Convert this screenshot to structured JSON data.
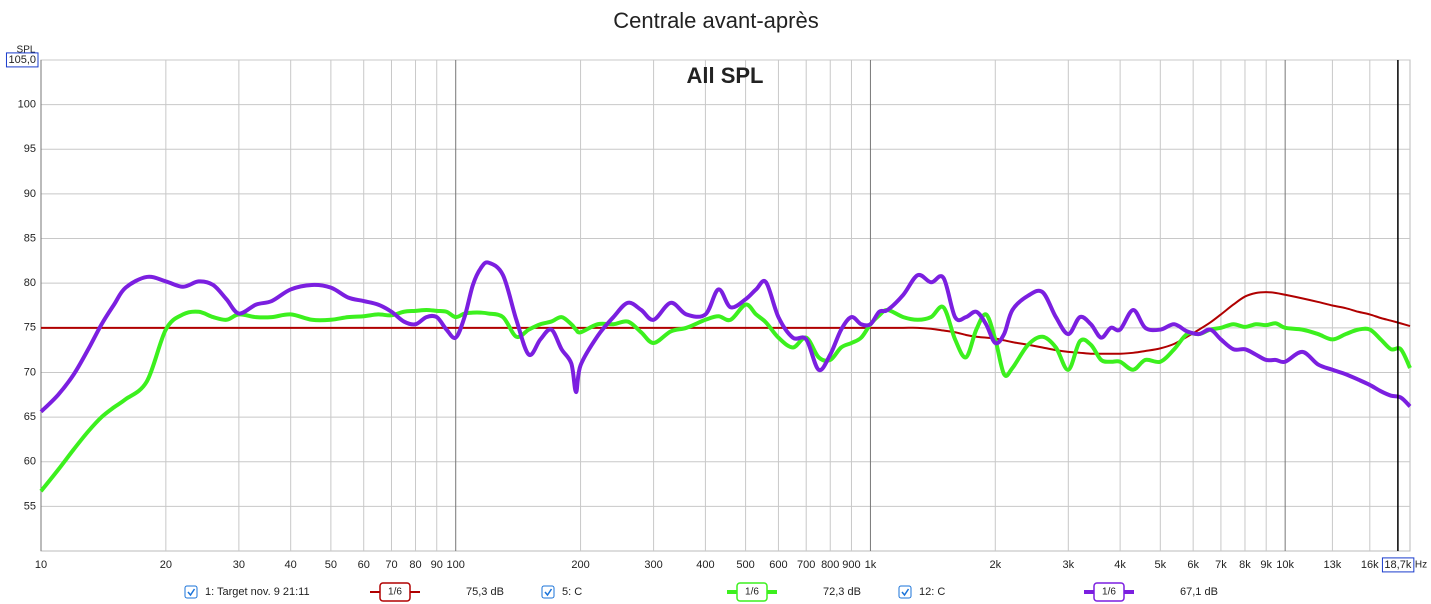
{
  "chart_data": {
    "type": "line",
    "title": "Centrale avant-après",
    "annotation": "All SPL",
    "y_label": "SPL",
    "x_unit": "Hz",
    "log_x": true,
    "grid": true,
    "xlim": [
      10,
      20000
    ],
    "ylim": [
      50,
      105
    ],
    "xticks": [
      10,
      20,
      30,
      40,
      50,
      60,
      70,
      80,
      90,
      100,
      200,
      300,
      400,
      500,
      600,
      700,
      800,
      900,
      {
        "value": 1000,
        "label": "1k"
      },
      {
        "value": 2000,
        "label": "2k"
      },
      {
        "value": 3000,
        "label": "3k"
      },
      {
        "value": 4000,
        "label": "4k"
      },
      {
        "value": 5000,
        "label": "5k"
      },
      {
        "value": 6000,
        "label": "6k"
      },
      {
        "value": 7000,
        "label": "7k"
      },
      {
        "value": 8000,
        "label": "8k"
      },
      {
        "value": 9000,
        "label": "9k"
      },
      {
        "value": 10000,
        "label": "10k"
      },
      {
        "value": 13000,
        "label": "13k"
      },
      {
        "value": 16000,
        "label": "16k"
      }
    ],
    "yticks": [
      55,
      60,
      65,
      70,
      75,
      80,
      85,
      90,
      95,
      100,
      {
        "value": 105,
        "label": "105,0"
      }
    ],
    "cursor": {
      "value": 18700,
      "label": "18,7k"
    },
    "x": [
      10,
      11,
      12,
      13,
      14,
      15,
      16,
      18,
      20,
      22,
      24,
      26,
      28,
      30,
      33,
      36,
      40,
      45,
      50,
      55,
      60,
      65,
      70,
      75,
      80,
      85,
      90,
      95,
      100,
      105,
      110,
      115,
      120,
      130,
      140,
      150,
      160,
      170,
      180,
      190,
      195,
      200,
      220,
      240,
      260,
      280,
      300,
      330,
      360,
      400,
      430,
      460,
      500,
      530,
      560,
      600,
      650,
      700,
      750,
      800,
      850,
      900,
      950,
      1000,
      1050,
      1100,
      1200,
      1300,
      1400,
      1500,
      1600,
      1700,
      1800,
      1900,
      2000,
      2100,
      2200,
      2400,
      2600,
      2800,
      3000,
      3200,
      3400,
      3600,
      3800,
      4000,
      4300,
      4600,
      5000,
      5400,
      5800,
      6200,
      6600,
      7000,
      7500,
      8000,
      8500,
      9000,
      9500,
      10000,
      11000,
      12000,
      13000,
      14000,
      15000,
      16000,
      17000,
      18000,
      19000,
      20000
    ],
    "series": [
      {
        "name": "1: Target nov. 9 21:11",
        "color": "#b00000",
        "width": 2,
        "smoothing": "1/6",
        "legend_value": "75,3 dB",
        "values": [
          75,
          75,
          75,
          75,
          75,
          75,
          75,
          75,
          75,
          75,
          75,
          75,
          75,
          75,
          75,
          75,
          75,
          75,
          75,
          75,
          75,
          75,
          75,
          75,
          75,
          75,
          75,
          75,
          75,
          75,
          75,
          75,
          75,
          75,
          75,
          75,
          75,
          75,
          75,
          75,
          75,
          75,
          75,
          75,
          75,
          75,
          75,
          75,
          75,
          75,
          75,
          75,
          75,
          75,
          75,
          75,
          75,
          75,
          75,
          75,
          75,
          75,
          75,
          75,
          75,
          75,
          75,
          75,
          74.9,
          74.7,
          74.5,
          74.2,
          74,
          73.9,
          73.8,
          73.6,
          73.4,
          73.1,
          72.8,
          72.5,
          72.3,
          72.2,
          72.1,
          72.1,
          72.1,
          72.1,
          72.2,
          72.4,
          72.7,
          73.2,
          74,
          74.8,
          75.6,
          76.5,
          77.6,
          78.5,
          78.9,
          79,
          78.9,
          78.7,
          78.3,
          77.9,
          77.5,
          77.2,
          76.8,
          76.5,
          76.1,
          75.8,
          75.5,
          75.2
        ]
      },
      {
        "name": "5: C",
        "color": "#3cf01e",
        "width": 4,
        "smoothing": "1/6",
        "legend_value": "72,3 dB",
        "values": [
          56.7,
          59.1,
          61.4,
          63.4,
          65,
          66.1,
          67,
          69,
          74.8,
          76.5,
          76.8,
          76.2,
          75.9,
          76.5,
          76.2,
          76.2,
          76.5,
          75.9,
          75.9,
          76.2,
          76.3,
          76.5,
          76.4,
          76.8,
          76.9,
          77,
          76.9,
          76.8,
          76.2,
          76.6,
          76.7,
          76.7,
          76.6,
          76.2,
          74,
          74.8,
          75.4,
          75.7,
          76.2,
          75.4,
          74.8,
          74.5,
          75.4,
          75.4,
          75.7,
          74.5,
          73.3,
          74.6,
          75,
          75.9,
          76.3,
          75.9,
          77.6,
          76.5,
          75.6,
          73.9,
          72.8,
          73.9,
          71.7,
          71.4,
          72.8,
          73.3,
          73.9,
          75.4,
          76.4,
          77,
          76.2,
          75.9,
          76.2,
          77.3,
          73.7,
          71.7,
          74.8,
          76.5,
          73.7,
          69.8,
          70.5,
          73.1,
          74,
          72.8,
          70.3,
          73.5,
          73.1,
          71.4,
          71.2,
          71.2,
          70.3,
          71.4,
          71.2,
          72.6,
          74.3,
          74.3,
          74.8,
          75,
          75.4,
          75.1,
          75.4,
          75.3,
          75.5,
          75,
          74.8,
          74.3,
          73.7,
          74.3,
          74.8,
          74.8,
          73.7,
          72.6,
          72.6,
          70.5
        ]
      },
      {
        "name": "12: C",
        "color": "#7b1fe0",
        "width": 4,
        "smoothing": "1/6",
        "legend_value": "67,1 dB",
        "values": [
          65.6,
          67.5,
          69.8,
          72.6,
          75.4,
          77.6,
          79.5,
          80.7,
          80.2,
          79.6,
          80.2,
          79.8,
          78.2,
          76.6,
          77.6,
          78,
          79.3,
          79.8,
          79.5,
          78.4,
          78,
          77.6,
          76.8,
          75.7,
          75.4,
          76.2,
          76.2,
          74.8,
          73.9,
          76.2,
          79.8,
          81.7,
          82.3,
          80.9,
          75.9,
          72,
          73.7,
          74.8,
          72.6,
          71,
          67.8,
          70.8,
          74.1,
          76.2,
          77.8,
          77,
          75.9,
          77.8,
          76.5,
          76.5,
          79.3,
          77.3,
          78.2,
          79.3,
          80.1,
          76.2,
          73.9,
          73.7,
          70.3,
          72,
          74.8,
          76.2,
          75.4,
          75.4,
          76.8,
          77,
          78.7,
          80.9,
          80.1,
          80.6,
          76.2,
          76.2,
          76.8,
          75.4,
          73.3,
          74.3,
          77,
          78.6,
          79,
          76.2,
          74.3,
          76.2,
          75.4,
          73.9,
          75,
          74.8,
          77,
          75,
          74.8,
          75.4,
          74.6,
          74.3,
          74.8,
          73.7,
          72.6,
          72.6,
          72,
          71.4,
          71.4,
          71.2,
          72.3,
          70.9,
          70.3,
          69.8,
          69.2,
          68.6,
          67.9,
          67.4,
          67.2,
          66.2
        ]
      }
    ]
  }
}
